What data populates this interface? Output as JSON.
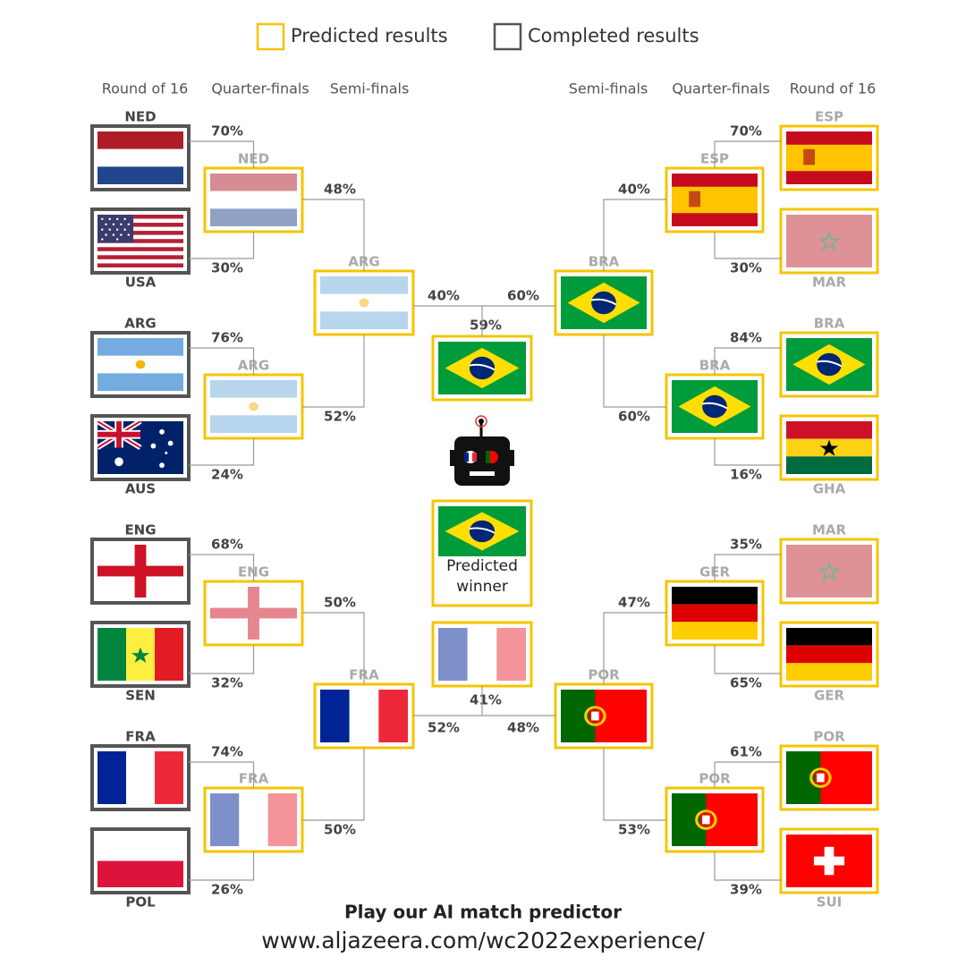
{
  "legend": {
    "predicted": "Predicted results",
    "completed": "Completed results"
  },
  "headers": {
    "left": [
      "Round of 16",
      "Quarter-finals",
      "Semi-finals"
    ],
    "right": [
      "Semi-finals",
      "Quarter-finals",
      "Round of 16"
    ]
  },
  "left": {
    "round_of_16": [
      {
        "team": "NED",
        "pct": "70%"
      },
      {
        "team": "USA",
        "pct": "30%"
      },
      {
        "team": "ARG",
        "pct": "76%"
      },
      {
        "team": "AUS",
        "pct": "24%"
      },
      {
        "team": "ENG",
        "pct": "68%"
      },
      {
        "team": "SEN",
        "pct": "32%"
      },
      {
        "team": "FRA",
        "pct": "74%"
      },
      {
        "team": "POL",
        "pct": "26%"
      }
    ],
    "quarter_finals": [
      {
        "team": "NED",
        "pct": "48%"
      },
      {
        "team": "ARG",
        "pct": "52%"
      },
      {
        "team": "ENG",
        "pct": "50%"
      },
      {
        "team": "FRA",
        "pct": "50%"
      }
    ],
    "semi_finals": [
      {
        "team": "ARG",
        "pct": "40%"
      },
      {
        "team": "FRA",
        "pct": "52%"
      }
    ]
  },
  "right": {
    "semi_finals": [
      {
        "team": "BRA",
        "pct": "60%"
      },
      {
        "team": "POR",
        "pct": "48%"
      }
    ],
    "quarter_finals": [
      {
        "team": "ESP",
        "pct": "40%"
      },
      {
        "team": "BRA",
        "pct": "60%"
      },
      {
        "team": "GER",
        "pct": "47%"
      },
      {
        "team": "POR",
        "pct": "53%"
      }
    ],
    "round_of_16": [
      {
        "team": "ESP",
        "pct": "70%"
      },
      {
        "team": "MAR",
        "pct": "30%"
      },
      {
        "team": "BRA",
        "pct": "84%"
      },
      {
        "team": "GHA",
        "pct": "16%"
      },
      {
        "team": "MAR",
        "pct": "35%"
      },
      {
        "team": "GER",
        "pct": "65%"
      },
      {
        "team": "POR",
        "pct": "61%"
      },
      {
        "team": "SUI",
        "pct": "39%"
      }
    ]
  },
  "final": [
    {
      "pct": "59%"
    },
    {
      "pct": "41%"
    }
  ],
  "winner": "Predicted winner",
  "footer": {
    "cta": "Play our AI match predictor",
    "url": "www.aljazeera.com/wc2022experience/"
  }
}
